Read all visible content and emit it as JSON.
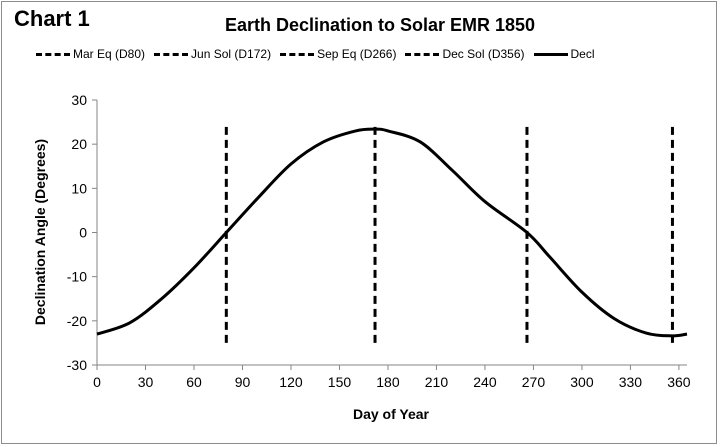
{
  "header": {
    "chart_label": "Chart 1"
  },
  "chart_data": {
    "type": "line",
    "title": "Earth Declination to Solar EMR 1850",
    "xlabel": "Day of Year",
    "ylabel": "Declination Angle (Degrees)",
    "xlim": [
      0,
      365
    ],
    "ylim": [
      -30,
      30
    ],
    "x_ticks": [
      "0",
      "30",
      "60",
      "90",
      "120",
      "150",
      "180",
      "210",
      "240",
      "270",
      "300",
      "330",
      "360"
    ],
    "y_ticks": [
      "30",
      "20",
      "10",
      "0",
      "-10",
      "-20",
      "-30"
    ],
    "grid": false,
    "legend_position": "top",
    "series": [
      {
        "name": "Mar Eq (D80)",
        "style": "dashed",
        "x": [
          80,
          80
        ],
        "y": [
          -25,
          25
        ]
      },
      {
        "name": "Jun Sol (D172)",
        "style": "dashed",
        "x": [
          172,
          172
        ],
        "y": [
          -25,
          25
        ]
      },
      {
        "name": "Sep Eq (D266)",
        "style": "dashed",
        "x": [
          266,
          266
        ],
        "y": [
          -25,
          25
        ]
      },
      {
        "name": "Dec Sol (D356)",
        "style": "dashed",
        "x": [
          356,
          356
        ],
        "y": [
          -25,
          25
        ]
      },
      {
        "name": "Decl",
        "style": "solid",
        "x": [
          0,
          20,
          40,
          60,
          80,
          100,
          120,
          140,
          160,
          172,
          180,
          200,
          220,
          240,
          266,
          280,
          300,
          320,
          340,
          356,
          365
        ],
        "y": [
          -23.0,
          -20.5,
          -15.0,
          -8.0,
          0.0,
          8.0,
          15.5,
          20.5,
          23.0,
          23.4,
          23.0,
          20.5,
          14.0,
          7.0,
          0.0,
          -5.5,
          -13.5,
          -19.5,
          -22.8,
          -23.4,
          -23.0
        ]
      }
    ],
    "colors": {
      "line": "#000000",
      "axis": "#868686"
    }
  }
}
